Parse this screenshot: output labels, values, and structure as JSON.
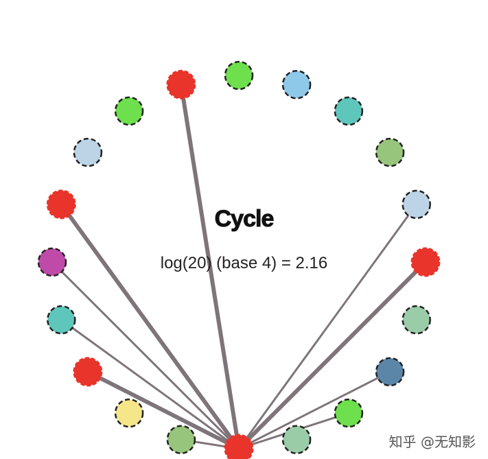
{
  "diagram": {
    "title": "Cycle",
    "formula": "log(20) (base 4) = 2.16",
    "watermark": "知乎 @无知影",
    "hub_node": 15,
    "node_count": 20,
    "colors": {
      "highlight": "#e8342a",
      "edge": "#7e7479",
      "node_stroke": "#222222"
    },
    "nodes": [
      {
        "id": 0,
        "color": "#e8342a",
        "highlighted": true
      },
      {
        "id": 1,
        "color": "#bcd4e6",
        "highlighted": false
      },
      {
        "id": 2,
        "color": "#98c57c",
        "highlighted": false
      },
      {
        "id": 3,
        "color": "#5fc6bc",
        "highlighted": false
      },
      {
        "id": 4,
        "color": "#8fc9ea",
        "highlighted": false
      },
      {
        "id": 5,
        "color": "#6ee04d",
        "highlighted": false
      },
      {
        "id": 6,
        "color": "#e8342a",
        "highlighted": true
      },
      {
        "id": 7,
        "color": "#6ee04d",
        "highlighted": false
      },
      {
        "id": 8,
        "color": "#bcd4e6",
        "highlighted": false
      },
      {
        "id": 9,
        "color": "#e8342a",
        "highlighted": true
      },
      {
        "id": 10,
        "color": "#bf4aa8",
        "highlighted": false
      },
      {
        "id": 11,
        "color": "#5fc6bc",
        "highlighted": false
      },
      {
        "id": 12,
        "color": "#e8342a",
        "highlighted": true
      },
      {
        "id": 13,
        "color": "#f6e68a",
        "highlighted": false
      },
      {
        "id": 14,
        "color": "#98c57c",
        "highlighted": false
      },
      {
        "id": 15,
        "color": "#e8342a",
        "highlighted": true
      },
      {
        "id": 16,
        "color": "#9acca8",
        "highlighted": false
      },
      {
        "id": 17,
        "color": "#6ee04d",
        "highlighted": false
      },
      {
        "id": 18,
        "color": "#5b86a8",
        "highlighted": false
      },
      {
        "id": 19,
        "color": "#9acca8",
        "highlighted": false
      }
    ],
    "edges": [
      {
        "from": 15,
        "to": 0,
        "strong": true
      },
      {
        "from": 15,
        "to": 1,
        "strong": false
      },
      {
        "from": 15,
        "to": 6,
        "strong": true
      },
      {
        "from": 15,
        "to": 9,
        "strong": true
      },
      {
        "from": 15,
        "to": 10,
        "strong": false
      },
      {
        "from": 15,
        "to": 11,
        "strong": false
      },
      {
        "from": 15,
        "to": 12,
        "strong": true
      },
      {
        "from": 15,
        "to": 14,
        "strong": false
      },
      {
        "from": 15,
        "to": 17,
        "strong": false
      },
      {
        "from": 15,
        "to": 18,
        "strong": false
      }
    ]
  }
}
